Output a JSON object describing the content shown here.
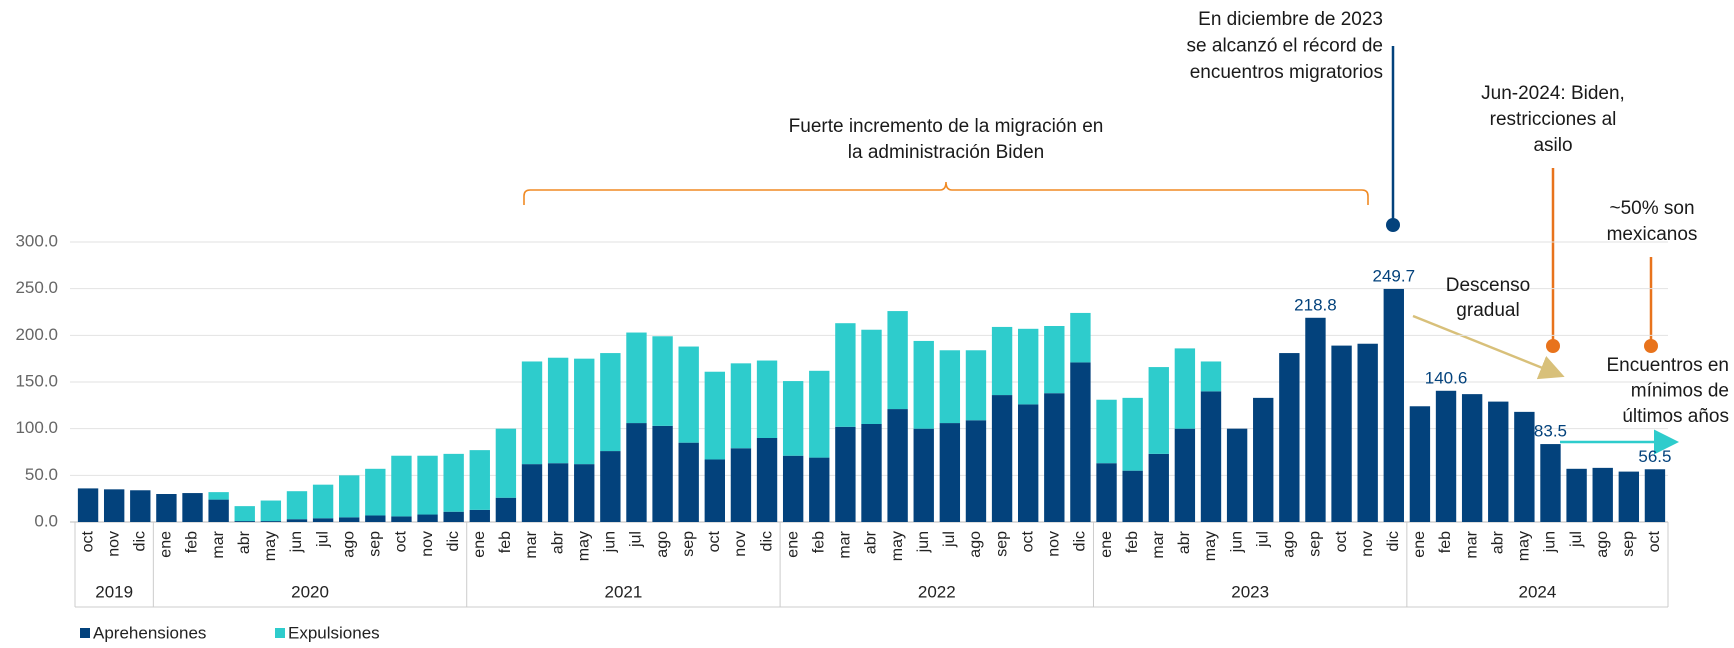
{
  "chart_data": {
    "type": "stacked_bar",
    "categories": [
      "oct",
      "nov",
      "dic",
      "ene",
      "feb",
      "mar",
      "abr",
      "may",
      "jun",
      "jul",
      "ago",
      "sep",
      "oct",
      "nov",
      "dic",
      "ene",
      "feb",
      "mar",
      "abr",
      "may",
      "jun",
      "jul",
      "ago",
      "sep",
      "oct",
      "nov",
      "dic",
      "ene",
      "feb",
      "mar",
      "abr",
      "may",
      "jun",
      "jul",
      "ago",
      "sep",
      "oct",
      "nov",
      "dic",
      "ene",
      "feb",
      "mar",
      "abr",
      "may",
      "jun",
      "jul",
      "ago",
      "sep",
      "oct",
      "nov",
      "dic",
      "ene",
      "feb",
      "mar",
      "abr",
      "may",
      "jun",
      "jul",
      "ago",
      "sep",
      "oct"
    ],
    "years": [
      "2019",
      "2020",
      "2021",
      "2022",
      "2023",
      "2024"
    ],
    "series": [
      {
        "name": "Aprehensiones",
        "color": "#03427c",
        "values": [
          36,
          35,
          34,
          30,
          31,
          24,
          1,
          1,
          3,
          4,
          5,
          7,
          6,
          8,
          11,
          13,
          26,
          62,
          63,
          62,
          76,
          106,
          103,
          85,
          67,
          79,
          90,
          71,
          69,
          102,
          105,
          121,
          100,
          106,
          109,
          136,
          126,
          138,
          171,
          63,
          55,
          73,
          100,
          140,
          100,
          133,
          181,
          218.8,
          189,
          191,
          249.7,
          124,
          140.6,
          137,
          129,
          118,
          83.5,
          57,
          58,
          54,
          56.5
        ],
        "value_labels": [
          null,
          null,
          null,
          null,
          null,
          null,
          null,
          null,
          null,
          null,
          null,
          null,
          null,
          null,
          null,
          null,
          null,
          null,
          null,
          null,
          null,
          null,
          null,
          null,
          null,
          null,
          null,
          null,
          null,
          null,
          null,
          null,
          null,
          null,
          null,
          null,
          null,
          null,
          null,
          null,
          null,
          null,
          null,
          null,
          null,
          null,
          null,
          "218.8",
          null,
          null,
          "249.7",
          null,
          "140.6",
          null,
          null,
          null,
          "83.5",
          null,
          null,
          null,
          "56.5"
        ]
      },
      {
        "name": "Expulsiones",
        "color": "#2ecccc",
        "values": [
          0,
          0,
          0,
          0,
          0,
          8,
          16,
          22,
          30,
          36,
          45,
          50,
          65,
          63,
          62,
          64,
          74,
          110,
          113,
          113,
          105,
          97,
          96,
          103,
          94,
          91,
          83,
          80,
          93,
          111,
          101,
          105,
          94,
          78,
          75,
          73,
          81,
          72,
          53,
          68,
          78,
          93,
          86,
          32,
          0,
          0,
          0,
          0,
          0,
          0,
          0,
          0,
          0,
          0,
          0,
          0,
          0,
          0,
          0,
          0,
          0
        ]
      }
    ],
    "ylim": [
      0,
      300
    ],
    "yticks": [
      {
        "value": 0,
        "label": "0.0"
      },
      {
        "value": 50,
        "label": "50.0"
      },
      {
        "value": 100,
        "label": "100.0"
      },
      {
        "value": 150,
        "label": "150.0"
      },
      {
        "value": 200,
        "label": "200.0"
      },
      {
        "value": 250,
        "label": "250.0"
      },
      {
        "value": 300,
        "label": "300.0"
      }
    ],
    "grid": true,
    "annotations": {
      "biden": [
        "Fuerte incremento de la migración en",
        "la administración Biden"
      ],
      "record": [
        "En diciembre de 2023",
        "se alcanzó el récord de",
        "encuentros migratorios"
      ],
      "asilo": [
        "Jun-2024: Biden,",
        "restricciones al",
        "asilo"
      ],
      "mexicanos": [
        "~50% son",
        "mexicanos"
      ],
      "descenso": [
        "Descenso",
        "gradual"
      ],
      "minimos": [
        "Encuentros en",
        "mínimos de",
        "últimos años"
      ]
    }
  }
}
